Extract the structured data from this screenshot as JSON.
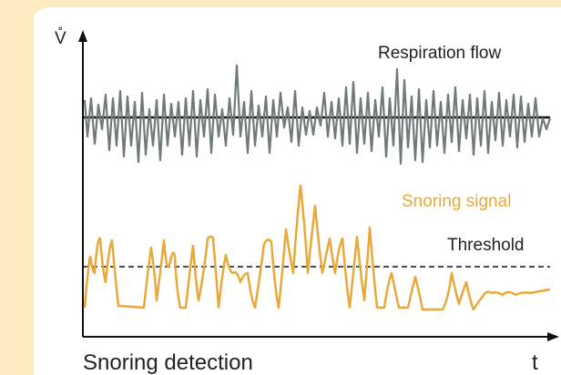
{
  "diagram": {
    "y_axis_label": "V̊",
    "x_axis_label": "t",
    "caption": "Snoring detection",
    "labels": {
      "respiration": "Respiration flow",
      "snoring": "Snoring signal",
      "threshold": "Threshold"
    },
    "colors": {
      "background": "#fdebc2",
      "respiration": "#6f7a79",
      "snoring": "#e8a93a",
      "axis": "#111111"
    }
  }
}
